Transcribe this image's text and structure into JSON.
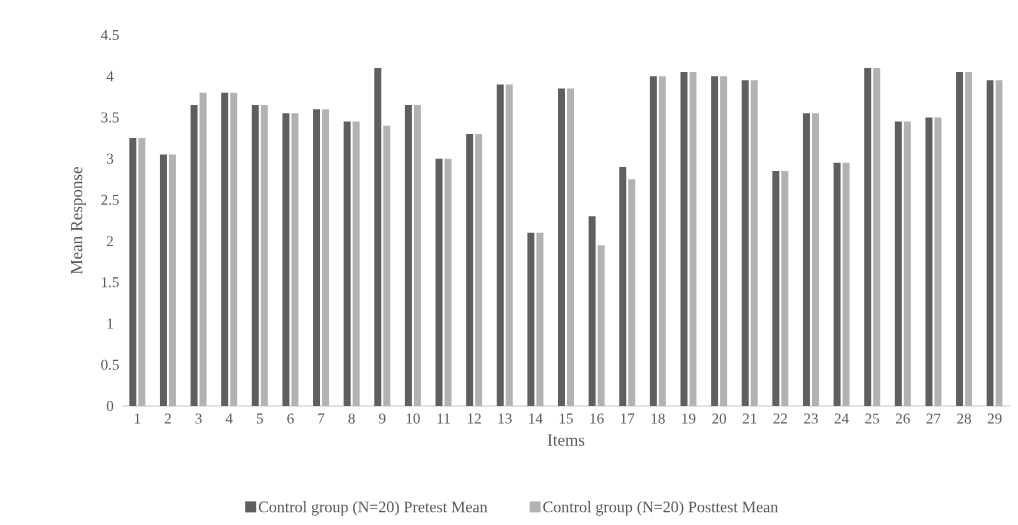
{
  "chart_data": {
    "type": "bar",
    "xlabel": "Items",
    "ylabel": "Mean Response",
    "categories": [
      "1",
      "2",
      "3",
      "4",
      "5",
      "6",
      "7",
      "8",
      "9",
      "10",
      "11",
      "12",
      "13",
      "14",
      "15",
      "16",
      "17",
      "18",
      "19",
      "20",
      "21",
      "22",
      "23",
      "24",
      "25",
      "26",
      "27",
      "28",
      "29"
    ],
    "series": [
      {
        "name": "Control group (N=20) Pretest Mean",
        "color": "#5f5f5f",
        "values": [
          3.25,
          3.05,
          3.65,
          3.8,
          3.65,
          3.55,
          3.6,
          3.45,
          4.1,
          3.65,
          3.0,
          3.3,
          3.9,
          2.1,
          3.85,
          2.3,
          2.9,
          4.0,
          4.05,
          4.0,
          3.95,
          2.85,
          3.55,
          2.95,
          4.1,
          3.45,
          3.5,
          4.05,
          3.95
        ]
      },
      {
        "name": "Control group (N=20) Posttest Mean",
        "color": "#b2b2b2",
        "values": [
          3.25,
          3.05,
          3.8,
          3.8,
          3.65,
          3.55,
          3.6,
          3.45,
          3.4,
          3.65,
          3.0,
          3.3,
          3.9,
          2.1,
          3.85,
          1.95,
          2.75,
          4.0,
          4.05,
          4.0,
          3.95,
          2.85,
          3.55,
          2.95,
          4.1,
          3.45,
          3.5,
          4.05,
          3.95
        ]
      }
    ],
    "ylim": [
      0,
      4.5
    ],
    "yticks": [
      0,
      0.5,
      1,
      1.5,
      2,
      2.5,
      3,
      3.5,
      4,
      4.5
    ],
    "legend": "bottom"
  }
}
